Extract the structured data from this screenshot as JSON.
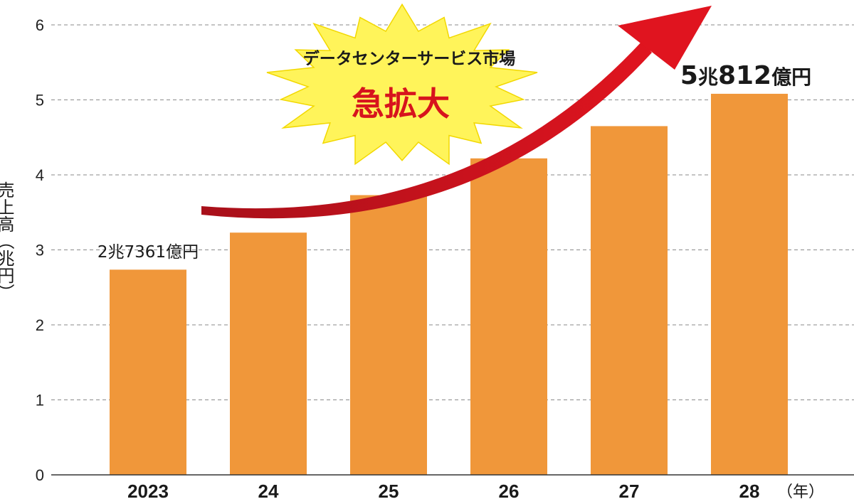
{
  "chart_data": {
    "type": "bar",
    "categories": [
      "2023",
      "24",
      "25",
      "26",
      "27",
      "28"
    ],
    "values": [
      2.7361,
      3.23,
      3.73,
      4.22,
      4.65,
      5.0812
    ],
    "ylabel": "売上高（兆円）",
    "x_unit": "（年）",
    "ylim": [
      0,
      6
    ],
    "yticks": [
      "0",
      "1",
      "2",
      "3",
      "4",
      "5",
      "6"
    ],
    "grid": true,
    "bar_color": "#f0973a",
    "first_value_label": "2兆7361億円",
    "last_value_label": {
      "n1": "5",
      "u1": "兆",
      "n2": "812",
      "u2": "億円"
    },
    "annotation": {
      "subtitle": "データセンターサービス市場",
      "title": "急拡大",
      "burst_color": "#fff45a",
      "arrow_color": "#d7141d"
    }
  }
}
